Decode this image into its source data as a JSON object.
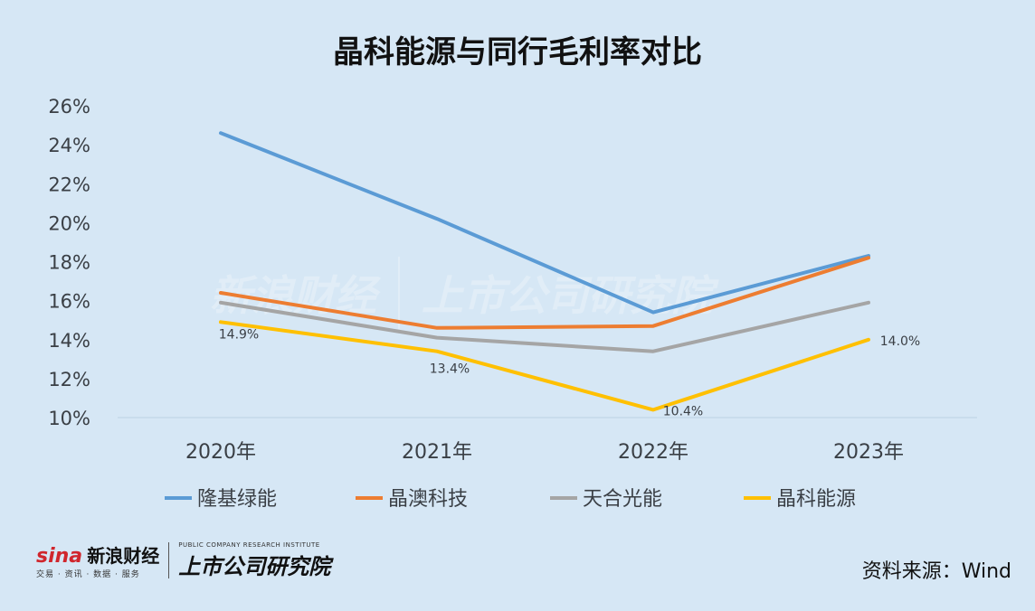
{
  "title": "晶科能源与同行毛利率对比",
  "source": "资料来源：Wind",
  "watermark": {
    "sina": "sina",
    "sina_cn": "新浪财经",
    "sina_sub": "交易 · 资讯 · 数据 · 服务",
    "institute": "上市公司研究院",
    "institute_en": "PUBLIC COMPANY RESEARCH INSTITUTE"
  },
  "chart_data": {
    "type": "line",
    "title": "晶科能源与同行毛利率对比",
    "categories": [
      "2020年",
      "2021年",
      "2022年",
      "2023年"
    ],
    "ylim": [
      10,
      26
    ],
    "y_ticks": [
      "10%",
      "12%",
      "14%",
      "16%",
      "18%",
      "20%",
      "22%",
      "24%",
      "26%"
    ],
    "y_tick_values": [
      10,
      12,
      14,
      16,
      18,
      20,
      22,
      24,
      26
    ],
    "grid": false,
    "legend_position": "bottom",
    "series": [
      {
        "name": "隆基绿能",
        "color": "#5b9bd5",
        "values": [
          24.6,
          20.2,
          15.4,
          18.3
        ]
      },
      {
        "name": "晶澳科技",
        "color": "#ed7d31",
        "values": [
          16.4,
          14.6,
          14.7,
          18.2
        ]
      },
      {
        "name": "天合光能",
        "color": "#a5a5a5",
        "values": [
          15.9,
          14.1,
          13.4,
          15.9
        ]
      },
      {
        "name": "晶科能源",
        "color": "#ffc000",
        "values": [
          14.9,
          13.4,
          10.4,
          14.0
        ],
        "data_labels": [
          "14.9%",
          "13.4%",
          "10.4%",
          "14.0%"
        ]
      }
    ]
  }
}
